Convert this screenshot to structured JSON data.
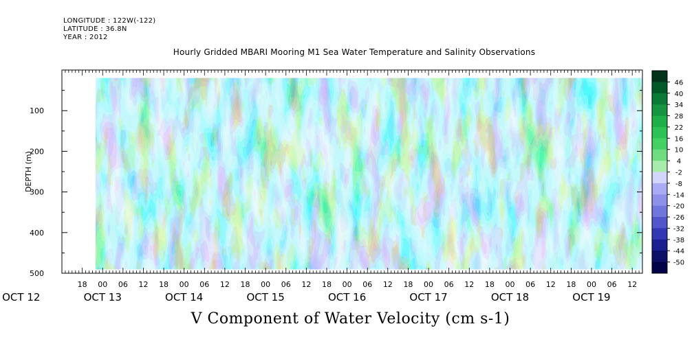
{
  "header": {
    "longitude": "LONGITUDE : 122W(-122)",
    "latitude": "LATITUDE : 36.8N",
    "year": "YEAR : 2012"
  },
  "chart_data": {
    "type": "heatmap",
    "title": "Hourly Gridded MBARI Mooring M1 Sea Water Temperature and Salinity Observations",
    "subtitle": "V Component of Water Velocity (cm s-1)",
    "ylabel": "DEPTH (m)",
    "xlabel": "",
    "ylim": [
      500,
      0
    ],
    "yticks": [
      100,
      200,
      300,
      400,
      500
    ],
    "ytick_labels": [
      "100",
      "200",
      "300",
      "400",
      "500"
    ],
    "xlim": [
      "2012-10-12T12:00",
      "2012-10-19T15:00"
    ],
    "x_hour_ticks": [
      "18",
      "00",
      "06",
      "12",
      "18",
      "00",
      "06",
      "12",
      "18",
      "00",
      "06",
      "12",
      "18",
      "00",
      "06",
      "12",
      "18",
      "00",
      "06",
      "12",
      "18",
      "00",
      "06",
      "12",
      "18",
      "00",
      "06",
      "12",
      "18",
      "00",
      "06",
      "12"
    ],
    "x_day_labels": [
      {
        "date": "2012-10-12T00:00",
        "label": "OCT 12"
      },
      {
        "date": "2012-10-13T00:00",
        "label": "OCT 13"
      },
      {
        "date": "2012-10-14T00:00",
        "label": "OCT 14"
      },
      {
        "date": "2012-10-15T00:00",
        "label": "OCT 15"
      },
      {
        "date": "2012-10-16T00:00",
        "label": "OCT 16"
      },
      {
        "date": "2012-10-17T00:00",
        "label": "OCT 17"
      },
      {
        "date": "2012-10-18T00:00",
        "label": "OCT 18"
      },
      {
        "date": "2012-10-19T00:00",
        "label": "OCT 19"
      }
    ],
    "data_depth_range": [
      20,
      490
    ],
    "data_time_start": "2012-10-12T22:00",
    "colorbar": {
      "labels": [
        "46",
        "40",
        "34",
        "28",
        "22",
        "16",
        "10",
        "4",
        "-2",
        "-8",
        "-14",
        "-20",
        "-26",
        "-32",
        "-38",
        "-44",
        "-50"
      ],
      "colors": [
        "#00331a",
        "#005a28",
        "#0a7a36",
        "#15953f",
        "#1faf48",
        "#2cc254",
        "#45d064",
        "#6fdd7f",
        "#a7ecac",
        "#d2d6ff",
        "#a9acf4",
        "#8d91ea",
        "#7076dc",
        "#5157cb",
        "#3238b3",
        "#1a1f8f",
        "#0b0f66",
        "#020248"
      ]
    }
  }
}
